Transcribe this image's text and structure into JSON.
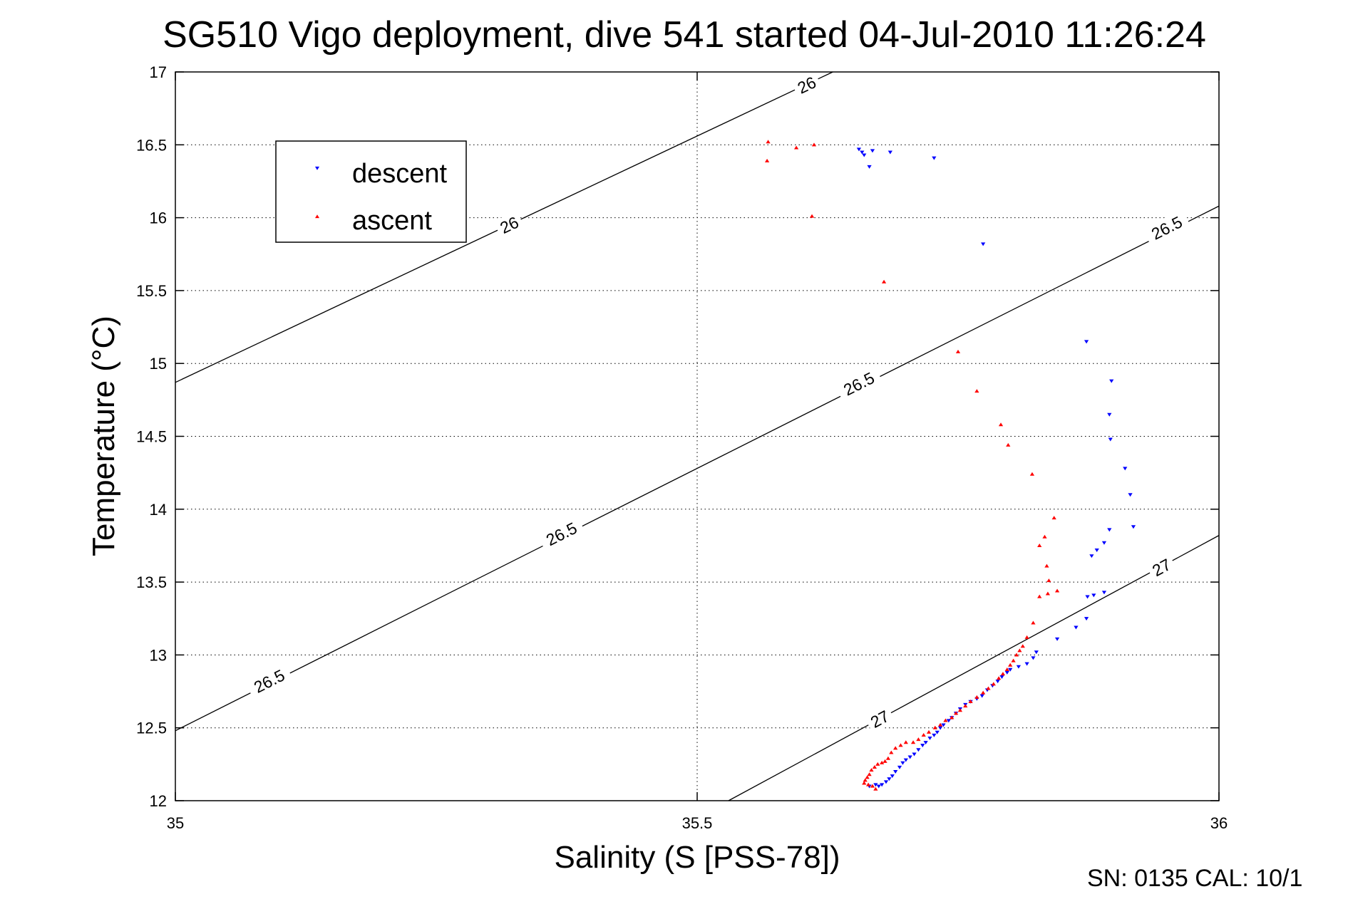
{
  "chart_data": {
    "type": "scatter",
    "title": "SG510 Vigo deployment, dive 541 started 04-Jul-2010 11:26:24",
    "xlabel": "Salinity (S [PSS-78])",
    "ylabel": "Temperature (°C)",
    "xlim": [
      35,
      36
    ],
    "ylim": [
      12,
      17
    ],
    "xticks": [
      "35",
      "35.5",
      "36"
    ],
    "yticks": [
      "12",
      "12.5",
      "13",
      "13.5",
      "14",
      "14.5",
      "15",
      "15.5",
      "16",
      "16.5",
      "17"
    ],
    "grid": true,
    "legend_position": "top-left",
    "footer": "SN: 0135  CAL: 10/1",
    "series": [
      {
        "name": "descent",
        "marker": "triangle-down",
        "color": "#0000ff",
        "points": [
          [
            35.655,
            16.47
          ],
          [
            35.658,
            16.45
          ],
          [
            35.66,
            16.43
          ],
          [
            35.665,
            16.35
          ],
          [
            35.668,
            16.46
          ],
          [
            35.685,
            16.45
          ],
          [
            35.727,
            16.41
          ],
          [
            35.774,
            15.82
          ],
          [
            35.873,
            15.15
          ],
          [
            35.897,
            14.88
          ],
          [
            35.895,
            14.65
          ],
          [
            35.896,
            14.48
          ],
          [
            35.91,
            14.28
          ],
          [
            35.915,
            14.1
          ],
          [
            35.918,
            13.88
          ],
          [
            35.895,
            13.86
          ],
          [
            35.89,
            13.77
          ],
          [
            35.883,
            13.72
          ],
          [
            35.878,
            13.68
          ],
          [
            35.89,
            13.43
          ],
          [
            35.88,
            13.41
          ],
          [
            35.874,
            13.4
          ],
          [
            35.873,
            13.25
          ],
          [
            35.863,
            13.19
          ],
          [
            35.845,
            13.11
          ],
          [
            35.825,
            13.02
          ],
          [
            35.822,
            12.98
          ],
          [
            35.816,
            12.94
          ],
          [
            35.808,
            12.92
          ],
          [
            35.8,
            12.9
          ],
          [
            35.797,
            12.88
          ],
          [
            35.792,
            12.85
          ],
          [
            35.788,
            12.82
          ],
          [
            35.783,
            12.79
          ],
          [
            35.778,
            12.76
          ],
          [
            35.773,
            12.72
          ],
          [
            35.768,
            12.7
          ],
          [
            35.762,
            12.68
          ],
          [
            35.757,
            12.66
          ],
          [
            35.752,
            12.63
          ],
          [
            35.748,
            12.6
          ],
          [
            35.744,
            12.57
          ],
          [
            35.741,
            12.55
          ],
          [
            35.736,
            12.52
          ],
          [
            35.733,
            12.5
          ],
          [
            35.73,
            12.47
          ],
          [
            35.727,
            12.45
          ],
          [
            35.723,
            12.43
          ],
          [
            35.719,
            12.4
          ],
          [
            35.716,
            12.38
          ],
          [
            35.712,
            12.35
          ],
          [
            35.708,
            12.32
          ],
          [
            35.704,
            12.3
          ],
          [
            35.7,
            12.28
          ],
          [
            35.697,
            12.26
          ],
          [
            35.694,
            12.23
          ],
          [
            35.69,
            12.2
          ],
          [
            35.687,
            12.17
          ],
          [
            35.684,
            12.15
          ],
          [
            35.681,
            12.13
          ],
          [
            35.677,
            12.11
          ],
          [
            35.674,
            12.1
          ],
          [
            35.671,
            12.11
          ],
          [
            35.665,
            12.1
          ]
        ]
      },
      {
        "name": "ascent",
        "marker": "triangle-up",
        "color": "#ff0000",
        "points": [
          [
            35.568,
            16.52
          ],
          [
            35.567,
            16.39
          ],
          [
            35.595,
            16.48
          ],
          [
            35.612,
            16.5
          ],
          [
            35.61,
            16.01
          ],
          [
            35.679,
            15.56
          ],
          [
            35.75,
            15.08
          ],
          [
            35.768,
            14.81
          ],
          [
            35.791,
            14.58
          ],
          [
            35.798,
            14.44
          ],
          [
            35.821,
            14.24
          ],
          [
            35.842,
            13.94
          ],
          [
            35.833,
            13.81
          ],
          [
            35.828,
            13.75
          ],
          [
            35.835,
            13.61
          ],
          [
            35.837,
            13.51
          ],
          [
            35.845,
            13.44
          ],
          [
            35.836,
            13.42
          ],
          [
            35.828,
            13.4
          ],
          [
            35.822,
            13.22
          ],
          [
            35.816,
            13.12
          ],
          [
            35.812,
            13.06
          ],
          [
            35.809,
            13.03
          ],
          [
            35.806,
            13.0
          ],
          [
            35.803,
            12.96
          ],
          [
            35.8,
            12.93
          ],
          [
            35.797,
            12.9
          ],
          [
            35.793,
            12.87
          ],
          [
            35.789,
            12.84
          ],
          [
            35.784,
            12.8
          ],
          [
            35.779,
            12.77
          ],
          [
            35.774,
            12.74
          ],
          [
            35.768,
            12.71
          ],
          [
            35.762,
            12.68
          ],
          [
            35.757,
            12.65
          ],
          [
            35.752,
            12.62
          ],
          [
            35.748,
            12.6
          ],
          [
            35.744,
            12.57
          ],
          [
            35.738,
            12.55
          ],
          [
            35.733,
            12.52
          ],
          [
            35.728,
            12.5
          ],
          [
            35.722,
            12.47
          ],
          [
            35.717,
            12.45
          ],
          [
            35.712,
            12.42
          ],
          [
            35.707,
            12.4
          ],
          [
            35.7,
            12.4
          ],
          [
            35.695,
            12.38
          ],
          [
            35.69,
            12.36
          ],
          [
            35.686,
            12.33
          ],
          [
            35.683,
            12.29
          ],
          [
            35.68,
            12.27
          ],
          [
            35.677,
            12.26
          ],
          [
            35.673,
            12.25
          ],
          [
            35.67,
            12.23
          ],
          [
            35.667,
            12.21
          ],
          [
            35.665,
            12.18
          ],
          [
            35.663,
            12.16
          ],
          [
            35.661,
            12.14
          ],
          [
            35.66,
            12.12
          ],
          [
            35.664,
            12.11
          ],
          [
            35.668,
            12.1
          ],
          [
            35.671,
            12.08
          ]
        ]
      }
    ],
    "contours": [
      {
        "label": "26",
        "points": [
          [
            35.0,
            14.87
          ],
          [
            35.63,
            17.0
          ]
        ],
        "label_positions": [
          [
            35.32,
            15.95
          ],
          [
            35.605,
            16.91
          ]
        ]
      },
      {
        "label": "26.5",
        "points": [
          [
            35.0,
            12.48
          ],
          [
            36.0,
            16.08
          ]
        ],
        "label_positions": [
          [
            35.09,
            12.82
          ],
          [
            35.37,
            13.83
          ],
          [
            35.655,
            14.86
          ],
          [
            35.95,
            15.93
          ]
        ]
      },
      {
        "label": "27",
        "points": [
          [
            35.53,
            12.0
          ],
          [
            36.0,
            13.82
          ]
        ],
        "label_positions": [
          [
            35.675,
            12.56
          ],
          [
            35.945,
            13.6
          ]
        ]
      }
    ]
  }
}
